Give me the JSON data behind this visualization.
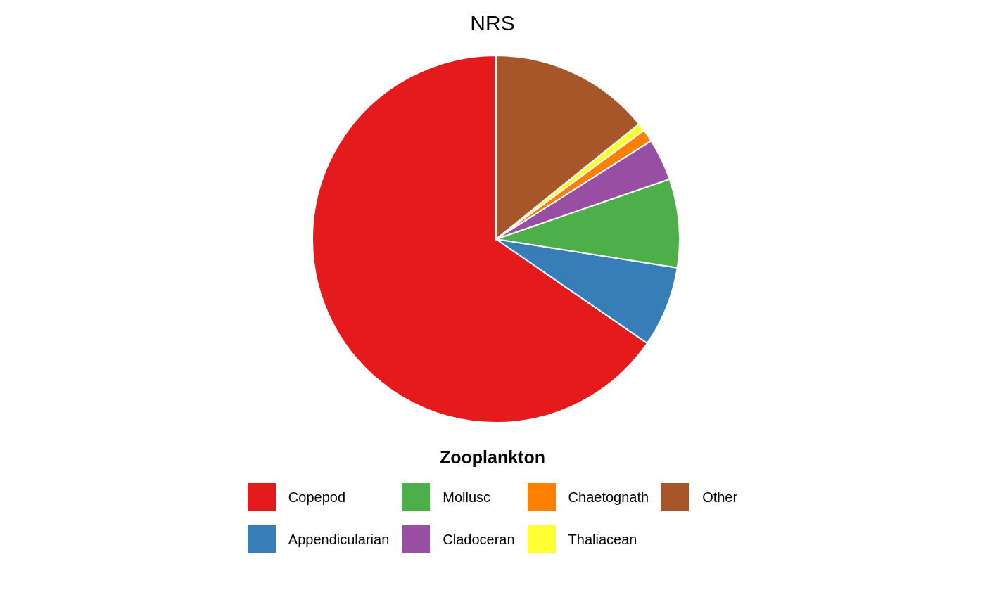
{
  "chart_data": {
    "type": "pie",
    "title": "NRS",
    "legend_title": "Zooplankton",
    "legend": "bottom",
    "categories": [
      "Copepod",
      "Appendicularian",
      "Mollusc",
      "Cladoceran",
      "Chaetognath",
      "Thaliacean",
      "Other"
    ],
    "values": [
      65.4,
      7.1,
      7.8,
      3.7,
      1.1,
      0.7,
      14.2
    ],
    "colors": [
      "#e41a1c",
      "#377eb8",
      "#4daf4a",
      "#984ea3",
      "#ff7f00",
      "#ffff33",
      "#a65628"
    ]
  }
}
